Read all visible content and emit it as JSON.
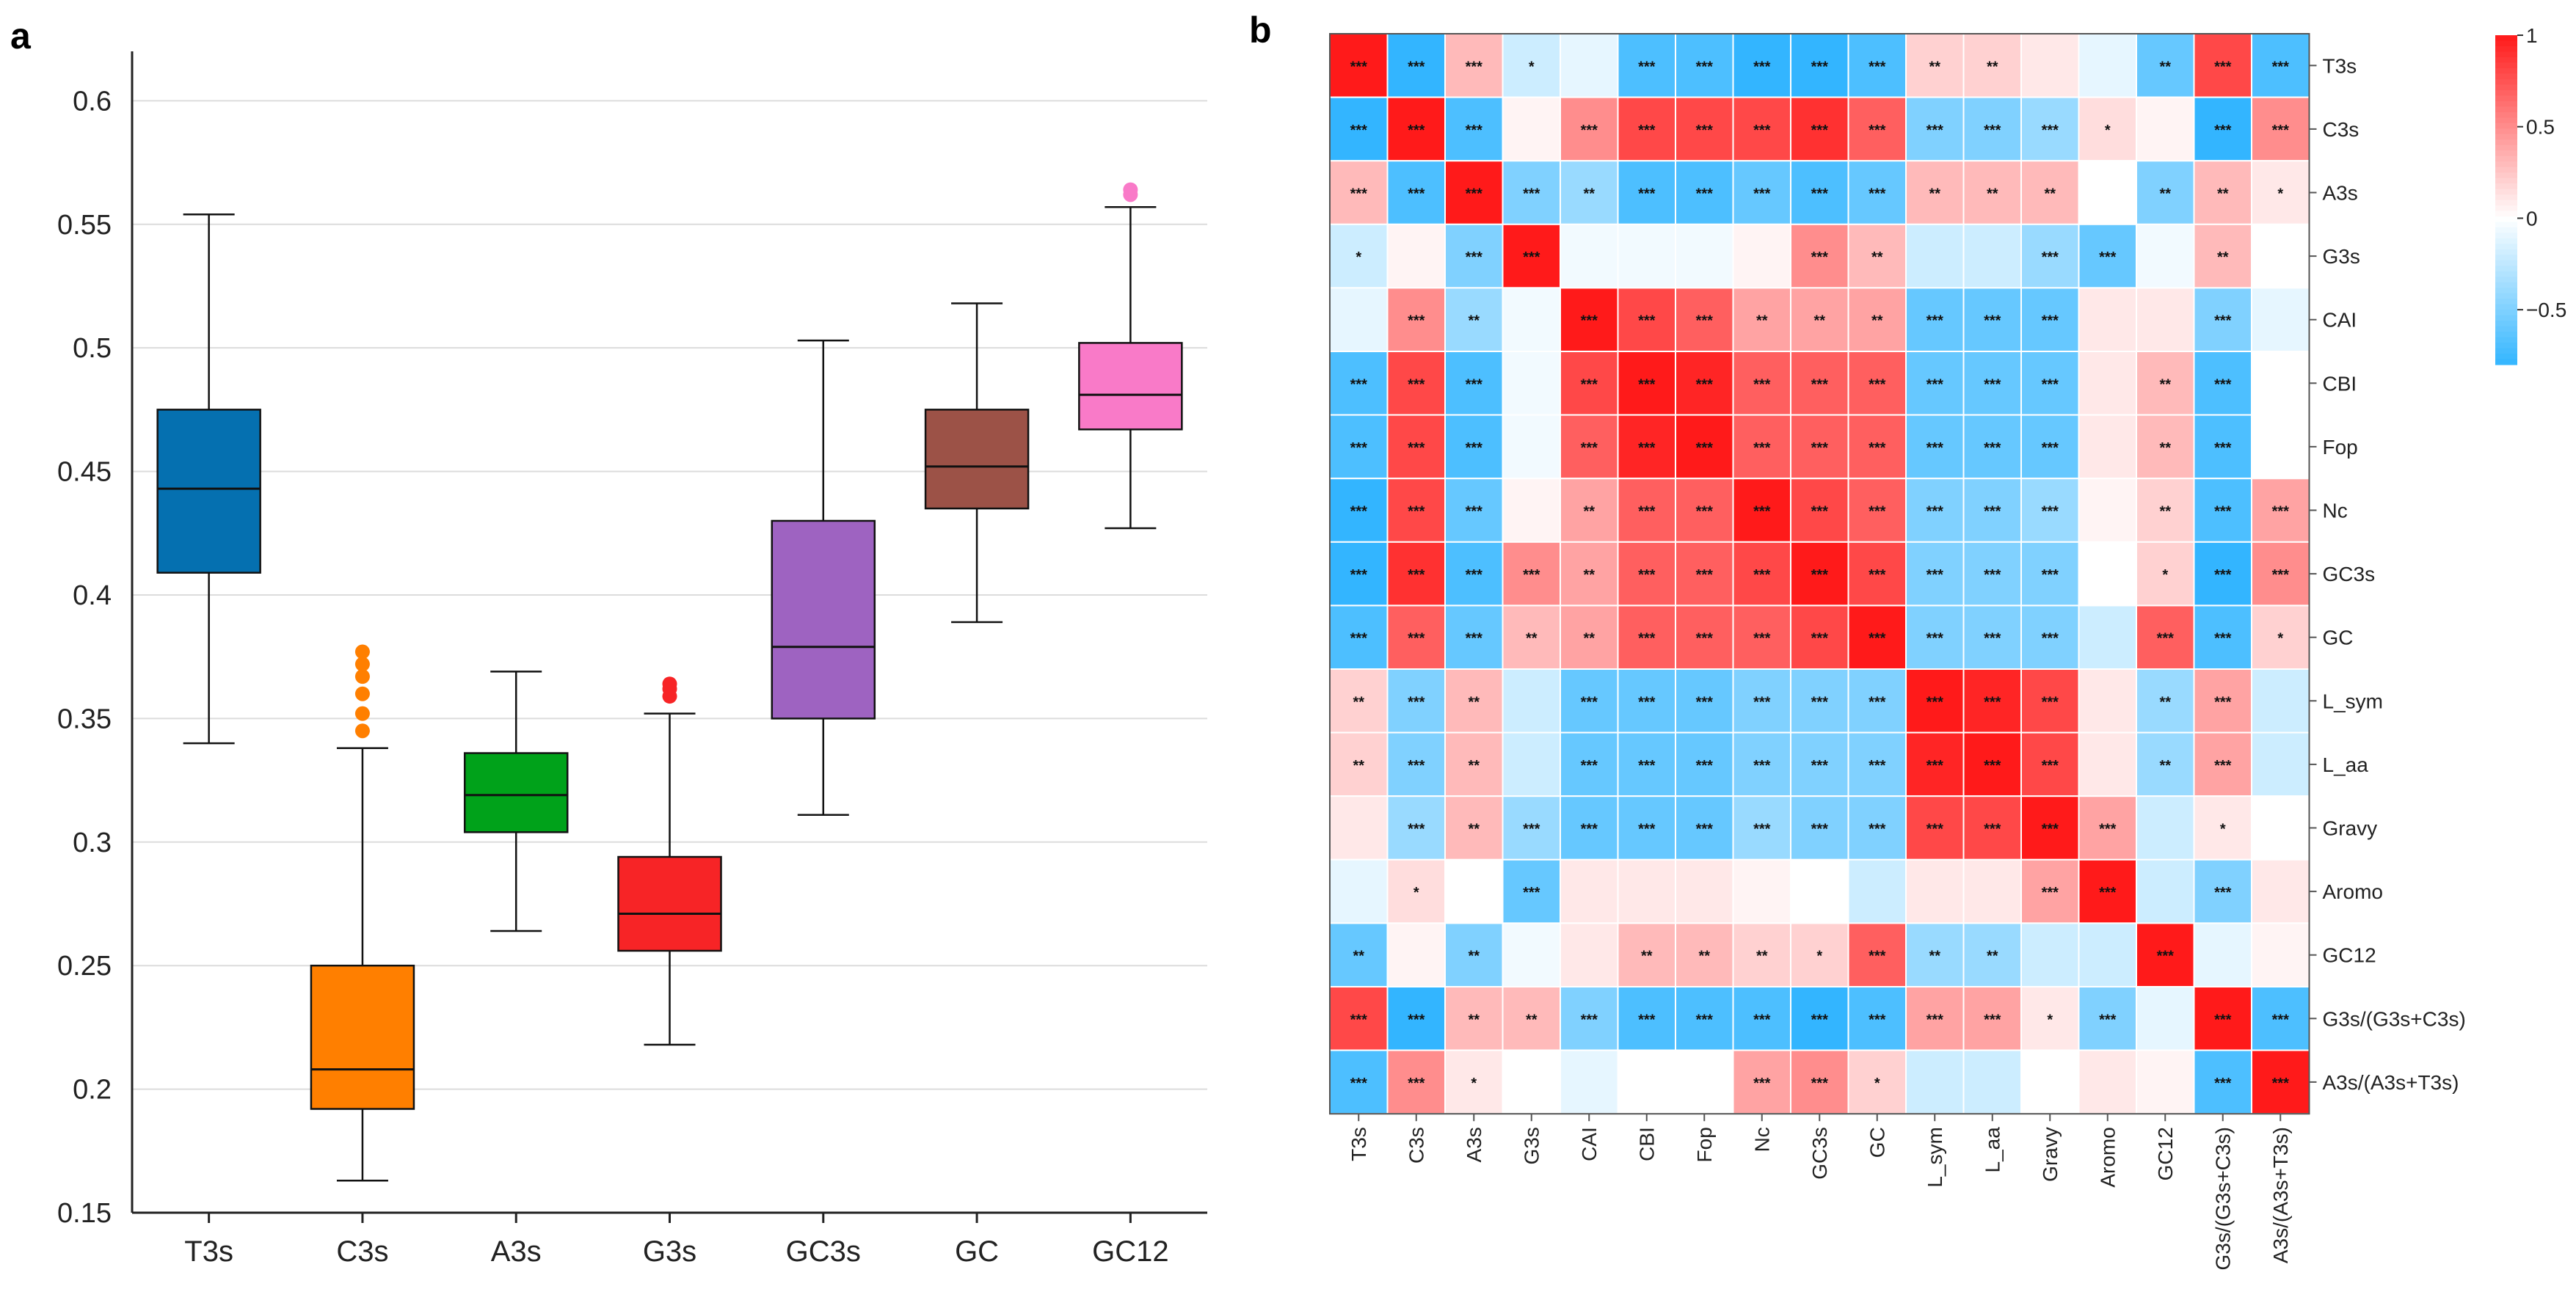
{
  "chart_data": [
    {
      "panel": "a",
      "type": "box",
      "title": "",
      "xlabel": "",
      "ylabel": "",
      "ylim": [
        0.15,
        0.62
      ],
      "yticks": [
        0.15,
        0.2,
        0.25,
        0.3,
        0.35,
        0.4,
        0.45,
        0.5,
        0.55,
        0.6
      ],
      "grid": true,
      "categories": [
        "T3s",
        "C3s",
        "A3s",
        "G3s",
        "GC3s",
        "GC",
        "GC12"
      ],
      "boxes": [
        {
          "name": "T3s",
          "color": "#0570b0",
          "whisker_low": 0.34,
          "q1": 0.409,
          "median": 0.443,
          "q3": 0.475,
          "whisker_high": 0.554,
          "outliers": []
        },
        {
          "name": "C3s",
          "color": "#ff7f00",
          "whisker_low": 0.163,
          "q1": 0.192,
          "median": 0.208,
          "q3": 0.25,
          "whisker_high": 0.338,
          "outliers": [
            0.345,
            0.352,
            0.36,
            0.367,
            0.372,
            0.377
          ]
        },
        {
          "name": "A3s",
          "color": "#00a21a",
          "whisker_low": 0.264,
          "q1": 0.304,
          "median": 0.319,
          "q3": 0.336,
          "whisker_high": 0.369,
          "outliers": []
        },
        {
          "name": "G3s",
          "color": "#f72426",
          "whisker_low": 0.218,
          "q1": 0.256,
          "median": 0.271,
          "q3": 0.294,
          "whisker_high": 0.352,
          "outliers": [
            0.359,
            0.362,
            0.364
          ]
        },
        {
          "name": "GC3s",
          "color": "#9e63c1",
          "whisker_low": 0.311,
          "q1": 0.35,
          "median": 0.379,
          "q3": 0.43,
          "whisker_high": 0.503,
          "outliers": []
        },
        {
          "name": "GC",
          "color": "#9c5247",
          "whisker_low": 0.389,
          "q1": 0.435,
          "median": 0.452,
          "q3": 0.475,
          "whisker_high": 0.518,
          "outliers": []
        },
        {
          "name": "GC12",
          "color": "#f97ac8",
          "whisker_low": 0.427,
          "q1": 0.467,
          "median": 0.481,
          "q3": 0.502,
          "whisker_high": 0.557,
          "outliers": [
            0.562,
            0.564
          ]
        }
      ]
    },
    {
      "panel": "b",
      "type": "heatmap",
      "title": "",
      "labels": [
        "T3s",
        "C3s",
        "A3s",
        "G3s",
        "CAI",
        "CBI",
        "Fop",
        "Nc",
        "GC3s",
        "GC",
        "L_sym",
        "L_aa",
        "Gravy",
        "Aromo",
        "GC12",
        "G3s/(G3s+C3s)",
        "A3s/(A3s+T3s)"
      ],
      "colorbar": {
        "min": -0.8,
        "max": 1,
        "ticks": [
          1,
          0.5,
          0,
          -0.5
        ],
        "tick_labels": [
          "1",
          "0.5",
          "0",
          "−0.5"
        ],
        "colors": [
          "#00a3ff",
          "#ffffff",
          "#ff1a1a"
        ]
      },
      "values": [
        [
          1,
          -0.8,
          0.3,
          -0.2,
          -0.1,
          -0.7,
          -0.7,
          -0.8,
          -0.8,
          -0.7,
          0.2,
          0.2,
          0.1,
          -0.1,
          -0.6,
          0.8,
          -0.7
        ],
        [
          -0.8,
          1,
          -0.7,
          0.05,
          0.5,
          0.8,
          0.8,
          0.8,
          0.9,
          0.7,
          -0.5,
          -0.5,
          -0.4,
          0.15,
          0.05,
          -0.8,
          0.5
        ],
        [
          0.3,
          -0.7,
          1,
          -0.5,
          -0.4,
          -0.7,
          -0.7,
          -0.6,
          -0.7,
          -0.6,
          0.3,
          0.3,
          0.3,
          0,
          -0.5,
          0.3,
          0.1
        ],
        [
          -0.2,
          0.05,
          -0.5,
          1,
          -0.05,
          -0.05,
          -0.05,
          0.05,
          0.5,
          0.3,
          -0.2,
          -0.2,
          -0.4,
          -0.6,
          -0.05,
          0.3,
          0
        ],
        [
          -0.1,
          0.5,
          -0.4,
          -0.05,
          1,
          0.8,
          0.7,
          0.4,
          0.4,
          0.4,
          -0.6,
          -0.6,
          -0.6,
          0.1,
          0.1,
          -0.5,
          -0.1
        ],
        [
          -0.7,
          0.8,
          -0.7,
          -0.05,
          0.8,
          1,
          0.95,
          0.7,
          0.7,
          0.7,
          -0.6,
          -0.6,
          -0.6,
          0.1,
          0.3,
          -0.7,
          0
        ],
        [
          -0.7,
          0.8,
          -0.7,
          -0.05,
          0.7,
          0.95,
          1,
          0.7,
          0.7,
          0.7,
          -0.6,
          -0.6,
          -0.6,
          0.1,
          0.3,
          -0.7,
          0
        ],
        [
          -0.8,
          0.8,
          -0.6,
          0.05,
          0.4,
          0.7,
          0.7,
          1,
          0.8,
          0.7,
          -0.5,
          -0.5,
          -0.4,
          0.05,
          0.2,
          -0.7,
          0.4
        ],
        [
          -0.8,
          0.9,
          -0.7,
          0.5,
          0.4,
          0.7,
          0.7,
          0.8,
          1,
          0.8,
          -0.5,
          -0.5,
          -0.5,
          0,
          0.2,
          -0.8,
          0.5
        ],
        [
          -0.7,
          0.7,
          -0.6,
          0.3,
          0.4,
          0.7,
          0.7,
          0.7,
          0.8,
          1,
          -0.5,
          -0.5,
          -0.5,
          -0.2,
          0.7,
          -0.7,
          0.2
        ],
        [
          0.2,
          -0.5,
          0.3,
          -0.2,
          -0.6,
          -0.6,
          -0.6,
          -0.5,
          -0.5,
          -0.5,
          1,
          0.95,
          0.8,
          0.1,
          -0.4,
          0.4,
          -0.2
        ],
        [
          0.2,
          -0.5,
          0.3,
          -0.2,
          -0.6,
          -0.6,
          -0.6,
          -0.5,
          -0.5,
          -0.5,
          0.95,
          1,
          0.8,
          0.1,
          -0.4,
          0.4,
          -0.2
        ],
        [
          0.1,
          -0.4,
          0.3,
          -0.4,
          -0.6,
          -0.6,
          -0.6,
          -0.4,
          -0.5,
          -0.5,
          0.8,
          0.8,
          1,
          0.4,
          -0.2,
          0.1,
          0
        ],
        [
          -0.1,
          0.15,
          0,
          -0.6,
          0.1,
          0.1,
          0.1,
          0.05,
          0,
          -0.2,
          0.1,
          0.1,
          0.4,
          1,
          -0.2,
          -0.5,
          0.1
        ],
        [
          -0.6,
          0.05,
          -0.5,
          -0.05,
          0.1,
          0.3,
          0.3,
          0.2,
          0.2,
          0.7,
          -0.4,
          -0.4,
          -0.2,
          -0.2,
          1,
          -0.1,
          0.05
        ],
        [
          0.8,
          -0.8,
          0.3,
          0.3,
          -0.5,
          -0.7,
          -0.7,
          -0.7,
          -0.8,
          -0.7,
          0.4,
          0.4,
          0.1,
          -0.5,
          -0.1,
          1,
          -0.7
        ],
        [
          -0.7,
          0.5,
          0.1,
          0,
          -0.1,
          0,
          0,
          0.4,
          0.5,
          0.2,
          -0.2,
          -0.2,
          0,
          0.1,
          0.05,
          -0.7,
          1
        ]
      ],
      "significance": [
        [
          "***",
          "***",
          "***",
          "*",
          "",
          "***",
          "***",
          "***",
          "***",
          "***",
          "**",
          "**",
          "",
          "",
          "**",
          "***",
          "***"
        ],
        [
          "***",
          "***",
          "***",
          "",
          "***",
          "***",
          "***",
          "***",
          "***",
          "***",
          "***",
          "***",
          "***",
          "*",
          "",
          "***",
          "***"
        ],
        [
          "***",
          "***",
          "***",
          "***",
          "**",
          "***",
          "***",
          "***",
          "***",
          "***",
          "**",
          "**",
          "**",
          "",
          "**",
          "**",
          "*"
        ],
        [
          "*",
          "",
          "***",
          "***",
          "",
          "",
          "",
          "",
          "***",
          "**",
          "",
          "",
          "***",
          "***",
          "",
          "**",
          ""
        ],
        [
          "",
          "***",
          "**",
          "",
          "***",
          "***",
          "***",
          "**",
          "**",
          "**",
          "***",
          "***",
          "***",
          "",
          "",
          "***",
          ""
        ],
        [
          "***",
          "***",
          "***",
          "",
          "***",
          "***",
          "***",
          "***",
          "***",
          "***",
          "***",
          "***",
          "***",
          "",
          "**",
          "***",
          ""
        ],
        [
          "***",
          "***",
          "***",
          "",
          "***",
          "***",
          "***",
          "***",
          "***",
          "***",
          "***",
          "***",
          "***",
          "",
          "**",
          "***",
          ""
        ],
        [
          "***",
          "***",
          "***",
          "",
          "**",
          "***",
          "***",
          "***",
          "***",
          "***",
          "***",
          "***",
          "***",
          "",
          "**",
          "***",
          "***"
        ],
        [
          "***",
          "***",
          "***",
          "***",
          "**",
          "***",
          "***",
          "***",
          "***",
          "***",
          "***",
          "***",
          "***",
          "",
          "*",
          "***",
          "***"
        ],
        [
          "***",
          "***",
          "***",
          "**",
          "**",
          "***",
          "***",
          "***",
          "***",
          "***",
          "***",
          "***",
          "***",
          "",
          "***",
          "***",
          "*"
        ],
        [
          "**",
          "***",
          "**",
          "",
          "***",
          "***",
          "***",
          "***",
          "***",
          "***",
          "***",
          "***",
          "***",
          "",
          "**",
          "***",
          ""
        ],
        [
          "**",
          "***",
          "**",
          "",
          "***",
          "***",
          "***",
          "***",
          "***",
          "***",
          "***",
          "***",
          "***",
          "",
          "**",
          "***",
          ""
        ],
        [
          "",
          "***",
          "**",
          "***",
          "***",
          "***",
          "***",
          "***",
          "***",
          "***",
          "***",
          "***",
          "***",
          "***",
          "",
          "*",
          ""
        ],
        [
          "",
          "*",
          "",
          "***",
          "",
          "",
          "",
          "",
          "",
          "",
          "",
          "",
          "***",
          "***",
          "",
          "***",
          ""
        ],
        [
          "**",
          "",
          "**",
          "",
          "",
          "**",
          "**",
          "**",
          "*",
          "***",
          "**",
          "**",
          "",
          "",
          "***",
          "",
          ""
        ],
        [
          "***",
          "***",
          "**",
          "**",
          "***",
          "***",
          "***",
          "***",
          "***",
          "***",
          "***",
          "***",
          "*",
          "***",
          "",
          "***",
          "***"
        ],
        [
          "***",
          "***",
          "*",
          "",
          "",
          "",
          "",
          "***",
          "***",
          "*",
          "",
          "",
          "",
          "",
          "",
          "***",
          "***"
        ]
      ]
    }
  ],
  "panel_labels": {
    "a": "a",
    "b": "b"
  }
}
